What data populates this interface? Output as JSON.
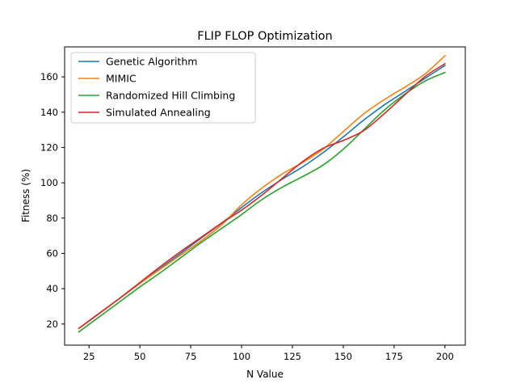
{
  "chart_data": {
    "type": "line",
    "title": "FLIP FLOP Optimization",
    "xlabel": "N Value",
    "ylabel": "Fitness (%)",
    "xlim": [
      13,
      210
    ],
    "ylim": [
      8,
      177
    ],
    "xticks": [
      25,
      50,
      75,
      100,
      125,
      150,
      175,
      200
    ],
    "yticks": [
      20,
      40,
      60,
      80,
      100,
      120,
      140,
      160
    ],
    "grid": false,
    "legend_position": "top-left",
    "series": [
      {
        "name": "Genetic Algorithm",
        "color": "#1f77b4",
        "x": [
          20,
          30,
          40,
          50,
          60,
          70,
          80,
          90,
          100,
          110,
          120,
          130,
          140,
          150,
          160,
          170,
          180,
          190,
          200
        ],
        "y": [
          17.5,
          26,
          34.5,
          43,
          51.5,
          60,
          68.5,
          77,
          86,
          94.5,
          102,
          109,
          117,
          126,
          135.5,
          144,
          151.5,
          159,
          166.5
        ]
      },
      {
        "name": "MIMIC",
        "color": "#ff7f0e",
        "x": [
          20,
          30,
          40,
          50,
          60,
          70,
          80,
          90,
          100,
          110,
          120,
          130,
          140,
          150,
          160,
          170,
          180,
          190,
          200
        ],
        "y": [
          17.5,
          26,
          34.5,
          43,
          51,
          59,
          67,
          76,
          87.5,
          97,
          105,
          111.5,
          119,
          129,
          139,
          147,
          154,
          161.5,
          172
        ]
      },
      {
        "name": "Randomized Hill Climbing",
        "color": "#2ca02c",
        "x": [
          20,
          30,
          40,
          50,
          60,
          70,
          80,
          90,
          100,
          110,
          120,
          130,
          140,
          150,
          160,
          170,
          180,
          190,
          200
        ],
        "y": [
          15.5,
          24,
          32.5,
          41,
          49,
          57.5,
          66,
          74,
          82,
          90.5,
          97.5,
          103.5,
          110,
          119,
          130,
          141,
          150,
          157.5,
          162.5
        ]
      },
      {
        "name": "Simulated Annealing",
        "color": "#d62728",
        "x": [
          20,
          30,
          40,
          50,
          60,
          70,
          80,
          90,
          100,
          110,
          120,
          130,
          140,
          150,
          160,
          170,
          180,
          190,
          200
        ],
        "y": [
          17.5,
          26,
          34.5,
          43.5,
          52.5,
          61,
          69,
          77,
          84.5,
          93,
          102.5,
          112,
          119.5,
          124,
          129.5,
          139,
          149.5,
          160,
          167.5
        ]
      }
    ]
  }
}
